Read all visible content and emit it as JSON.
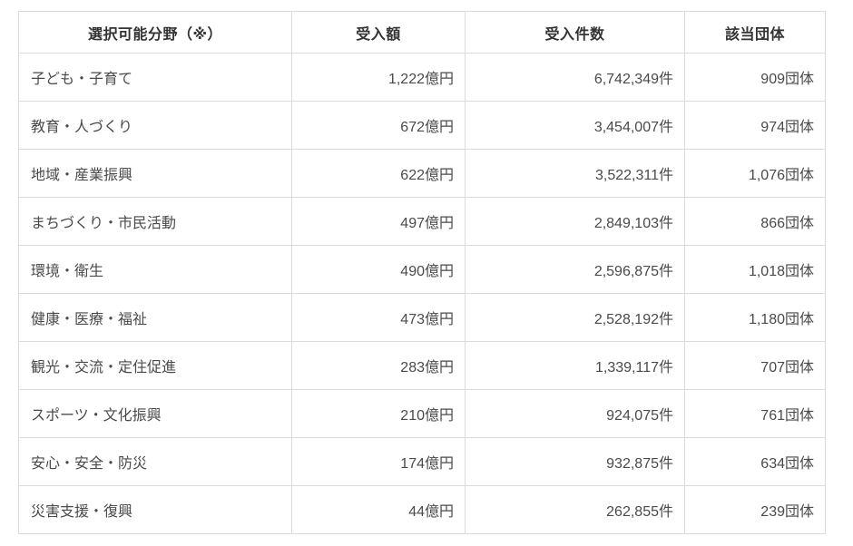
{
  "colors": {
    "background": "#ffffff",
    "border": "#d9dcde",
    "header_text": "#333333",
    "cell_text": "#4a4a4a"
  },
  "table": {
    "columns": [
      "選択可能分野（※）",
      "受入額",
      "受入件数",
      "該当団体"
    ],
    "rows": [
      {
        "field": "子ども・子育て",
        "amount": "1,222億円",
        "count": "6,742,349件",
        "orgs": "909団体"
      },
      {
        "field": "教育・人づくり",
        "amount": "672億円",
        "count": "3,454,007件",
        "orgs": "974団体"
      },
      {
        "field": "地域・産業振興",
        "amount": "622億円",
        "count": "3,522,311件",
        "orgs": "1,076団体"
      },
      {
        "field": "まちづくり・市民活動",
        "amount": "497億円",
        "count": "2,849,103件",
        "orgs": "866団体"
      },
      {
        "field": "環境・衛生",
        "amount": "490億円",
        "count": "2,596,875件",
        "orgs": "1,018団体"
      },
      {
        "field": "健康・医療・福祉",
        "amount": "473億円",
        "count": "2,528,192件",
        "orgs": "1,180団体"
      },
      {
        "field": "観光・交流・定住促進",
        "amount": "283億円",
        "count": "1,339,117件",
        "orgs": "707団体"
      },
      {
        "field": "スポーツ・文化振興",
        "amount": "210億円",
        "count": "924,075件",
        "orgs": "761団体"
      },
      {
        "field": "安心・安全・防災",
        "amount": "174億円",
        "count": "932,875件",
        "orgs": "634団体"
      },
      {
        "field": "災害支援・復興",
        "amount": "44億円",
        "count": "262,855件",
        "orgs": "239団体"
      }
    ]
  }
}
